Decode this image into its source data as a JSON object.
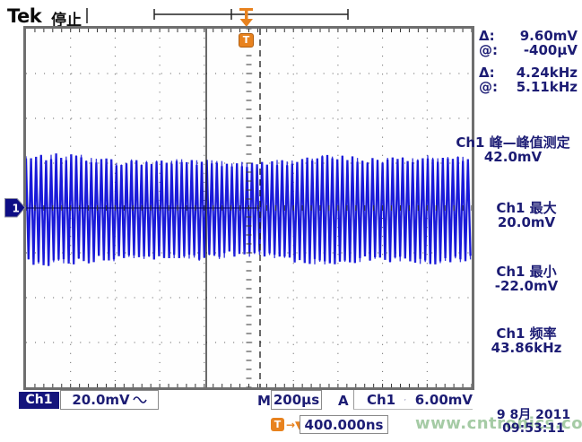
{
  "header": {
    "logo": "Tek",
    "acq_status": "停止"
  },
  "trigger": {
    "top_marker": "T",
    "badge": "T"
  },
  "channel_marker": "1",
  "readouts": {
    "cursor": [
      {
        "label": "Δ:",
        "value": "9.60mV"
      },
      {
        "label": "@:",
        "value": "-400µV"
      },
      {
        "label": "Δ:",
        "value": "4.24kHz"
      },
      {
        "label": "@:",
        "value": "5.11kHz"
      }
    ],
    "measurements": [
      {
        "title": "Ch1 峰—峰值测定",
        "value": "42.0mV"
      },
      {
        "title": "Ch1 最大",
        "value": "20.0mV"
      },
      {
        "title": "Ch1 最小",
        "value": "-22.0mV"
      },
      {
        "title": "Ch1 频率",
        "value": "43.86kHz"
      }
    ]
  },
  "status_bar": {
    "channel_badge": "Ch1",
    "vertical_scale": "20.0mV",
    "coupling_icon": "sine-wave",
    "main_label": "M",
    "timebase": "200µs",
    "acquire_label": "A",
    "trigger_source": "Ch1",
    "trigger_slope_icon": "rising-edge",
    "trigger_level": "6.00mV",
    "trigger_marker": "T",
    "trigger_arrow": "→▼",
    "trigger_position": "400.000ns",
    "date": "9 8月  2011",
    "time": "09:53:11"
  },
  "watermark": "www.cntronics.com",
  "waveform": {
    "channel": "Ch1",
    "vertical_scale": "20.0mV/div",
    "frequency": "43.86kHz",
    "peak_to_peak": "42.0mV",
    "color": "#1515d8"
  }
}
